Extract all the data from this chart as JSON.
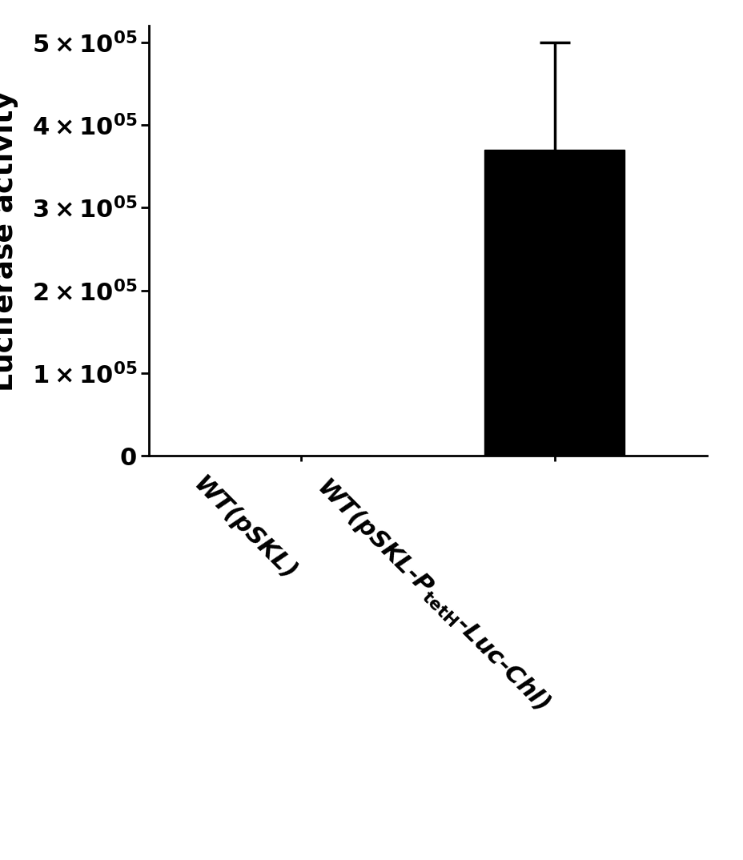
{
  "values": [
    0,
    370000
  ],
  "errors": [
    0,
    130000
  ],
  "bar_color": "#000000",
  "ylabel": "Luciferase activity",
  "ylim": [
    0,
    520000
  ],
  "yticks": [
    0,
    100000,
    200000,
    300000,
    400000,
    500000
  ],
  "bar_width": 0.55,
  "figsize": [
    9.29,
    10.74
  ],
  "dpi": 100,
  "label1": "WT(pSKL)",
  "label2_part1": "WT(pSKL-P",
  "label2_sub": "tetH",
  "label2_part2": "-Luc-Chl)",
  "ytick_prefix": [
    "0",
    "1",
    "2",
    "3",
    "4",
    "5"
  ],
  "ytick_exp": "05",
  "label_fontsize": 22,
  "ytick_fontsize": 22,
  "ylabel_fontsize": 26,
  "capsize": 14,
  "elinewidth": 2.5,
  "capthick": 2.5
}
